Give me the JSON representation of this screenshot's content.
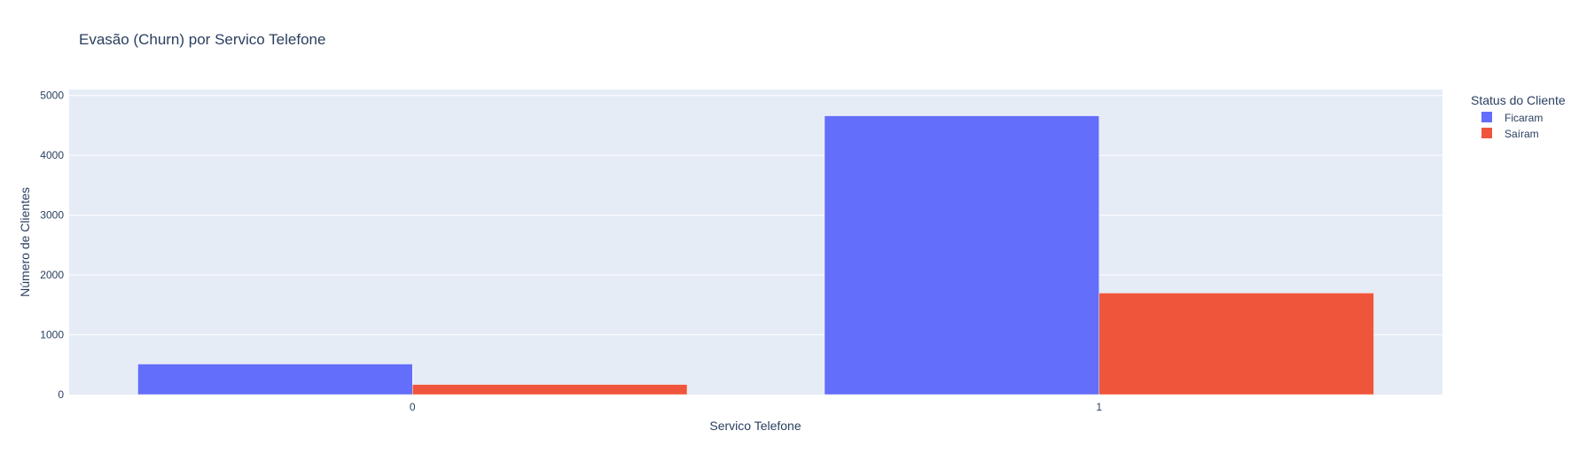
{
  "chart_data": {
    "type": "bar",
    "title": "Evasão (Churn) por Servico Telefone",
    "xlabel": "Servico Telefone",
    "ylabel": "Número de Clientes",
    "categories": [
      "0",
      "1"
    ],
    "series": [
      {
        "name": "Ficaram",
        "values": [
          512,
          4662
        ],
        "color": "#636efa"
      },
      {
        "name": "Saíram",
        "values": [
          170,
          1699
        ],
        "color": "#ef553b"
      }
    ],
    "ylim": [
      0,
      5100
    ],
    "yticks": [
      0,
      1000,
      2000,
      3000,
      4000,
      5000
    ],
    "ytick_labels": [
      "0",
      "1000",
      "2000",
      "3000",
      "4000",
      "5000"
    ],
    "grid": true,
    "legend": {
      "title": "Status do Cliente",
      "placement": "top-right",
      "entries": [
        "Ficaram",
        "Saíram"
      ]
    },
    "colors": {
      "plot_background": "#e5ecf6",
      "gridline": "#ffffff",
      "text": "#2a3f5f"
    }
  }
}
